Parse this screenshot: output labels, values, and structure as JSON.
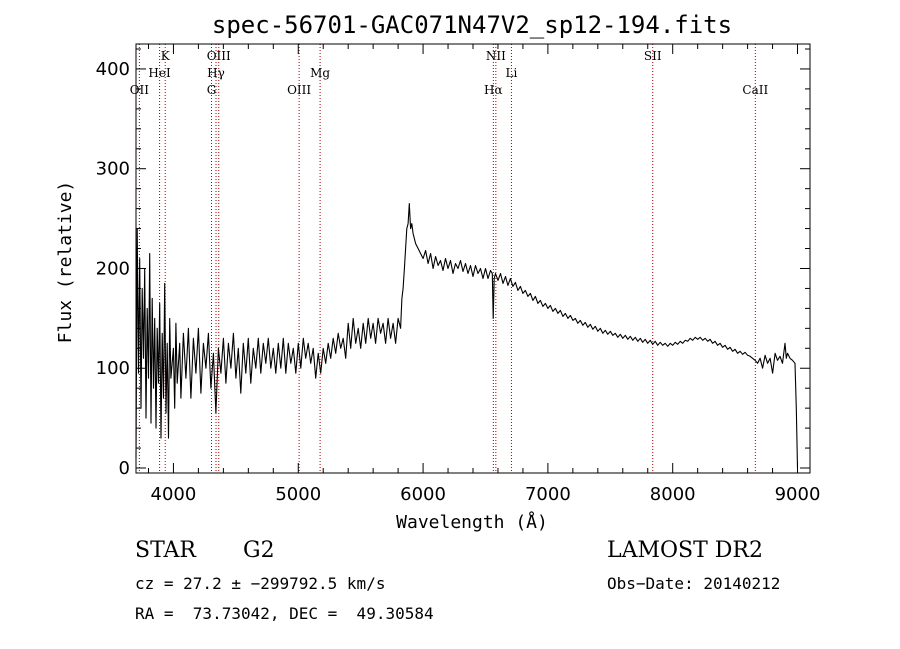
{
  "chart_data": {
    "type": "line",
    "title": "spec-56701-GAC071N47V2_sp12-194.fits",
    "xlabel": "Wavelength (Å)",
    "ylabel": "Flux (relative)",
    "xlim": [
      3700,
      9100
    ],
    "ylim": [
      -5,
      425
    ],
    "xticks": [
      4000,
      5000,
      6000,
      7000,
      8000,
      9000
    ],
    "yticks": [
      0,
      100,
      200,
      300,
      400
    ],
    "grid": false,
    "series": [
      {
        "color": "#000000",
        "points": [
          [
            3700,
            10
          ],
          [
            3710,
            240
          ],
          [
            3720,
            95
          ],
          [
            3730,
            210
          ],
          [
            3740,
            60
          ],
          [
            3750,
            180
          ],
          [
            3760,
            110
          ],
          [
            3770,
            200
          ],
          [
            3780,
            50
          ],
          [
            3790,
            160
          ],
          [
            3800,
            90
          ],
          [
            3810,
            215
          ],
          [
            3820,
            45
          ],
          [
            3830,
            170
          ],
          [
            3840,
            80
          ],
          [
            3850,
            150
          ],
          [
            3860,
            40
          ],
          [
            3870,
            140
          ],
          [
            3880,
            85
          ],
          [
            3890,
            165
          ],
          [
            3900,
            30
          ],
          [
            3910,
            135
          ],
          [
            3920,
            70
          ],
          [
            3930,
            185
          ],
          [
            3940,
            55
          ],
          [
            3950,
            125
          ],
          [
            3960,
            30
          ],
          [
            3970,
            150
          ],
          [
            3980,
            90
          ],
          [
            4000,
            120
          ],
          [
            4010,
            60
          ],
          [
            4020,
            145
          ],
          [
            4030,
            85
          ],
          [
            4050,
            125
          ],
          [
            4060,
            70
          ],
          [
            4080,
            135
          ],
          [
            4100,
            90
          ],
          [
            4120,
            140
          ],
          [
            4140,
            70
          ],
          [
            4160,
            130
          ],
          [
            4180,
            95
          ],
          [
            4200,
            140
          ],
          [
            4220,
            75
          ],
          [
            4240,
            125
          ],
          [
            4260,
            100
          ],
          [
            4280,
            135
          ],
          [
            4300,
            80
          ],
          [
            4320,
            115
          ],
          [
            4340,
            55
          ],
          [
            4360,
            120
          ],
          [
            4380,
            95
          ],
          [
            4400,
            130
          ],
          [
            4420,
            85
          ],
          [
            4440,
            125
          ],
          [
            4460,
            100
          ],
          [
            4480,
            135
          ],
          [
            4500,
            90
          ],
          [
            4520,
            120
          ],
          [
            4540,
            75
          ],
          [
            4560,
            125
          ],
          [
            4580,
            95
          ],
          [
            4600,
            130
          ],
          [
            4620,
            85
          ],
          [
            4640,
            120
          ],
          [
            4660,
            100
          ],
          [
            4680,
            130
          ],
          [
            4700,
            95
          ],
          [
            4720,
            125
          ],
          [
            4740,
            105
          ],
          [
            4760,
            130
          ],
          [
            4780,
            100
          ],
          [
            4800,
            120
          ],
          [
            4820,
            95
          ],
          [
            4840,
            125
          ],
          [
            4860,
            100
          ],
          [
            4880,
            130
          ],
          [
            4900,
            95
          ],
          [
            4920,
            125
          ],
          [
            4940,
            105
          ],
          [
            4960,
            120
          ],
          [
            4980,
            95
          ],
          [
            5000,
            125
          ],
          [
            5020,
            100
          ],
          [
            5040,
            130
          ],
          [
            5060,
            110
          ],
          [
            5080,
            125
          ],
          [
            5100,
            105
          ],
          [
            5120,
            120
          ],
          [
            5140,
            90
          ],
          [
            5160,
            115
          ],
          [
            5180,
            95
          ],
          [
            5200,
            120
          ],
          [
            5220,
            105
          ],
          [
            5240,
            125
          ],
          [
            5260,
            110
          ],
          [
            5280,
            130
          ],
          [
            5300,
            115
          ],
          [
            5320,
            135
          ],
          [
            5340,
            120
          ],
          [
            5360,
            130
          ],
          [
            5380,
            110
          ],
          [
            5400,
            145
          ],
          [
            5420,
            120
          ],
          [
            5440,
            150
          ],
          [
            5460,
            125
          ],
          [
            5480,
            140
          ],
          [
            5500,
            120
          ],
          [
            5520,
            145
          ],
          [
            5540,
            125
          ],
          [
            5560,
            150
          ],
          [
            5580,
            130
          ],
          [
            5600,
            145
          ],
          [
            5620,
            125
          ],
          [
            5640,
            150
          ],
          [
            5660,
            135
          ],
          [
            5680,
            145
          ],
          [
            5700,
            125
          ],
          [
            5720,
            150
          ],
          [
            5740,
            130
          ],
          [
            5760,
            145
          ],
          [
            5780,
            125
          ],
          [
            5800,
            150
          ],
          [
            5820,
            140
          ],
          [
            5830,
            170
          ],
          [
            5840,
            180
          ],
          [
            5850,
            200
          ],
          [
            5860,
            220
          ],
          [
            5870,
            240
          ],
          [
            5880,
            245
          ],
          [
            5890,
            265
          ],
          [
            5900,
            240
          ],
          [
            5910,
            245
          ],
          [
            5920,
            235
          ],
          [
            5940,
            225
          ],
          [
            5960,
            220
          ],
          [
            5980,
            215
          ],
          [
            6000,
            210
          ],
          [
            6020,
            218
          ],
          [
            6040,
            205
          ],
          [
            6060,
            215
          ],
          [
            6080,
            200
          ],
          [
            6100,
            212
          ],
          [
            6120,
            203
          ],
          [
            6140,
            208
          ],
          [
            6160,
            198
          ],
          [
            6180,
            210
          ],
          [
            6200,
            200
          ],
          [
            6220,
            208
          ],
          [
            6240,
            195
          ],
          [
            6260,
            205
          ],
          [
            6280,
            200
          ],
          [
            6300,
            208
          ],
          [
            6320,
            197
          ],
          [
            6340,
            205
          ],
          [
            6360,
            195
          ],
          [
            6380,
            203
          ],
          [
            6400,
            192
          ],
          [
            6420,
            203
          ],
          [
            6440,
            195
          ],
          [
            6460,
            200
          ],
          [
            6480,
            190
          ],
          [
            6500,
            200
          ],
          [
            6520,
            190
          ],
          [
            6540,
            198
          ],
          [
            6555,
            195
          ],
          [
            6562,
            150
          ],
          [
            6570,
            190
          ],
          [
            6580,
            195
          ],
          [
            6600,
            188
          ],
          [
            6620,
            195
          ],
          [
            6640,
            185
          ],
          [
            6660,
            192
          ],
          [
            6680,
            183
          ],
          [
            6700,
            190
          ],
          [
            6720,
            182
          ],
          [
            6740,
            186
          ],
          [
            6760,
            178
          ],
          [
            6780,
            182
          ],
          [
            6800,
            175
          ],
          [
            6820,
            178
          ],
          [
            6840,
            172
          ],
          [
            6860,
            175
          ],
          [
            6880,
            168
          ],
          [
            6900,
            172
          ],
          [
            6920,
            165
          ],
          [
            6940,
            168
          ],
          [
            6960,
            162
          ],
          [
            6980,
            165
          ],
          [
            7000,
            160
          ],
          [
            7020,
            163
          ],
          [
            7040,
            157
          ],
          [
            7060,
            160
          ],
          [
            7080,
            155
          ],
          [
            7100,
            158
          ],
          [
            7120,
            152
          ],
          [
            7140,
            155
          ],
          [
            7160,
            150
          ],
          [
            7180,
            153
          ],
          [
            7200,
            148
          ],
          [
            7220,
            150
          ],
          [
            7240,
            145
          ],
          [
            7260,
            148
          ],
          [
            7280,
            143
          ],
          [
            7300,
            146
          ],
          [
            7320,
            141
          ],
          [
            7340,
            144
          ],
          [
            7360,
            139
          ],
          [
            7380,
            142
          ],
          [
            7400,
            137
          ],
          [
            7420,
            140
          ],
          [
            7440,
            135
          ],
          [
            7460,
            138
          ],
          [
            7480,
            134
          ],
          [
            7500,
            137
          ],
          [
            7520,
            133
          ],
          [
            7540,
            135
          ],
          [
            7560,
            131
          ],
          [
            7580,
            134
          ],
          [
            7600,
            130
          ],
          [
            7620,
            133
          ],
          [
            7640,
            129
          ],
          [
            7660,
            132
          ],
          [
            7680,
            128
          ],
          [
            7700,
            131
          ],
          [
            7720,
            127
          ],
          [
            7740,
            130
          ],
          [
            7760,
            126
          ],
          [
            7780,
            129
          ],
          [
            7800,
            125
          ],
          [
            7820,
            128
          ],
          [
            7840,
            124
          ],
          [
            7860,
            127
          ],
          [
            7880,
            123
          ],
          [
            7900,
            126
          ],
          [
            7920,
            123
          ],
          [
            7940,
            125
          ],
          [
            7960,
            122
          ],
          [
            7980,
            125
          ],
          [
            8000,
            123
          ],
          [
            8020,
            126
          ],
          [
            8040,
            124
          ],
          [
            8060,
            127
          ],
          [
            8080,
            125
          ],
          [
            8100,
            128
          ],
          [
            8120,
            127
          ],
          [
            8140,
            130
          ],
          [
            8160,
            128
          ],
          [
            8180,
            131
          ],
          [
            8200,
            129
          ],
          [
            8220,
            131
          ],
          [
            8240,
            128
          ],
          [
            8260,
            130
          ],
          [
            8280,
            127
          ],
          [
            8300,
            129
          ],
          [
            8320,
            125
          ],
          [
            8340,
            127
          ],
          [
            8360,
            123
          ],
          [
            8380,
            125
          ],
          [
            8400,
            121
          ],
          [
            8420,
            123
          ],
          [
            8440,
            119
          ],
          [
            8460,
            121
          ],
          [
            8480,
            117
          ],
          [
            8500,
            119
          ],
          [
            8520,
            115
          ],
          [
            8540,
            117
          ],
          [
            8560,
            114
          ],
          [
            8580,
            116
          ],
          [
            8600,
            113
          ],
          [
            8620,
            112
          ],
          [
            8640,
            110
          ],
          [
            8660,
            108
          ],
          [
            8680,
            105
          ],
          [
            8700,
            110
          ],
          [
            8720,
            100
          ],
          [
            8740,
            113
          ],
          [
            8760,
            105
          ],
          [
            8780,
            110
          ],
          [
            8800,
            95
          ],
          [
            8820,
            115
          ],
          [
            8840,
            108
          ],
          [
            8860,
            112
          ],
          [
            8880,
            105
          ],
          [
            8900,
            125
          ],
          [
            8910,
            110
          ],
          [
            8920,
            115
          ],
          [
            8940,
            110
          ],
          [
            8960,
            108
          ],
          [
            8980,
            105
          ],
          [
            8990,
            60
          ],
          [
            9000,
            0
          ]
        ]
      }
    ],
    "lines": [
      {
        "name": "OII",
        "x": 3727,
        "row": 3
      },
      {
        "name": "K",
        "x": 3934,
        "row": 1
      },
      {
        "name": "HeI",
        "x": 3889,
        "row": 2
      },
      {
        "name": "OIII",
        "x": 4363,
        "row": 1
      },
      {
        "name": "Hγ",
        "x": 4341,
        "row": 2
      },
      {
        "name": "G",
        "x": 4305,
        "row": 3
      },
      {
        "name": "Mg",
        "x": 5175,
        "row": 2
      },
      {
        "name": "OIII",
        "x": 5007,
        "row": 3
      },
      {
        "name": "NII",
        "x": 6583,
        "row": 1
      },
      {
        "name": "Li",
        "x": 6708,
        "row": 2
      },
      {
        "name": "Hα",
        "x": 6563,
        "row": 3
      },
      {
        "name": "SII",
        "x": 7840,
        "row": 1
      },
      {
        "name": "CaII",
        "x": 8662,
        "row": 3
      }
    ]
  },
  "info": {
    "object_class": "STAR",
    "subclass": "G2",
    "survey": "LAMOST DR2",
    "redshift": "cz = 27.2 ± −299792.5 km/s",
    "obs_date": "Obs−Date: 20140212",
    "coords": "RA =  73.73042, DEC =  49.30584"
  }
}
